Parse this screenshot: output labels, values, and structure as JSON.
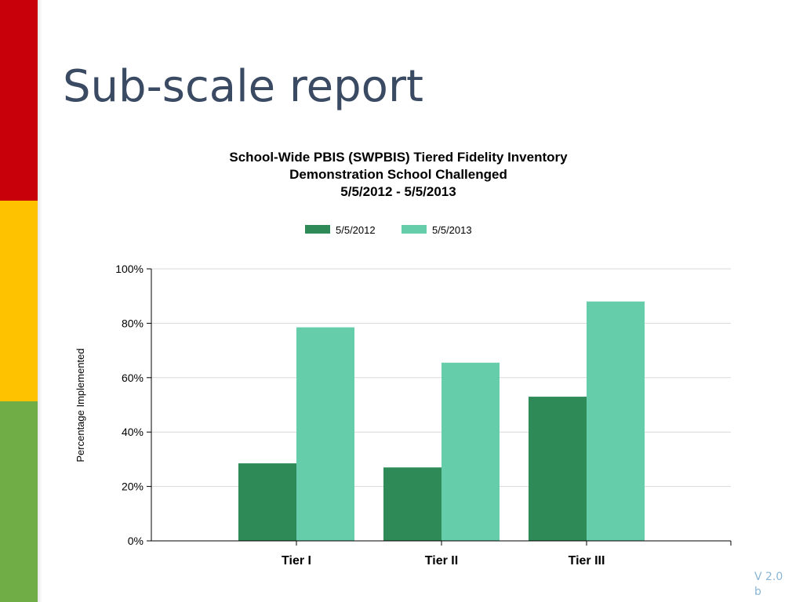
{
  "slide": {
    "title": "Sub-scale report",
    "footer_line1": "V 2.0",
    "footer_line2": "b"
  },
  "colors": {
    "stripe_red": "#c8000a",
    "stripe_yellow": "#fec200",
    "stripe_green": "#70ad47",
    "title_color": "#3a4a63"
  },
  "chart_data": {
    "type": "bar",
    "title_lines": [
      "School-Wide PBIS (SWPBIS) Tiered Fidelity Inventory",
      "Demonstration School Challenged",
      "5/5/2012 - 5/5/2013"
    ],
    "categories": [
      "Tier I",
      "Tier II",
      "Tier III"
    ],
    "series": [
      {
        "name": "5/5/2012",
        "values": [
          28.5,
          27,
          53
        ],
        "color": "#2e8b57"
      },
      {
        "name": "5/5/2013",
        "values": [
          78.5,
          65.5,
          88
        ],
        "color": "#66cdaa"
      }
    ],
    "xlabel": "",
    "ylabel": "Percentage Implemented",
    "ylim": [
      0,
      100
    ],
    "yticks": [
      "0%",
      "20%",
      "40%",
      "60%",
      "80%",
      "100%"
    ],
    "grid": true,
    "legend_position": "top-center"
  }
}
